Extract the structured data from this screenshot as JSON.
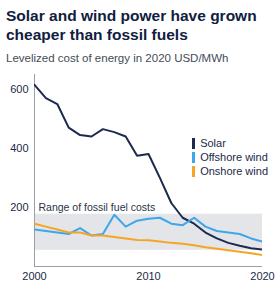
{
  "chart_data": {
    "type": "line",
    "title": "Solar and wind power have grown cheaper than fossil fuels",
    "subtitle": "Levelized cost of energy in 2020 USD/MWh",
    "x": [
      2000,
      2001,
      2002,
      2003,
      2004,
      2005,
      2006,
      2007,
      2008,
      2009,
      2010,
      2011,
      2012,
      2013,
      2014,
      2015,
      2016,
      2017,
      2018,
      2019,
      2020
    ],
    "series": [
      {
        "name": "Solar",
        "color": "#1b2a4e",
        "values": [
          615,
          570,
          550,
          470,
          445,
          440,
          465,
          455,
          440,
          375,
          381,
          300,
          215,
          165,
          145,
          115,
          95,
          80,
          70,
          62,
          57
        ]
      },
      {
        "name": "Offshore wind",
        "color": "#3ea6ea",
        "values": [
          125,
          120,
          115,
          110,
          130,
          105,
          110,
          175,
          135,
          155,
          162,
          165,
          145,
          140,
          165,
          135,
          120,
          115,
          110,
          95,
          84
        ]
      },
      {
        "name": "Onshore wind",
        "color": "#f5a524",
        "values": [
          145,
          135,
          125,
          115,
          115,
          105,
          105,
          100,
          95,
          90,
          89,
          85,
          80,
          77,
          72,
          65,
          60,
          55,
          50,
          45,
          39
        ]
      }
    ],
    "annotations": [
      {
        "text": "Range of fossil fuel costs",
        "y1": 55,
        "y2": 177
      }
    ],
    "xlim": [
      2000,
      2020
    ],
    "xticks": [
      2000,
      2010,
      2020
    ],
    "ylim": [
      0,
      650
    ],
    "yticks": [
      200,
      400,
      600
    ],
    "legend": "right"
  }
}
